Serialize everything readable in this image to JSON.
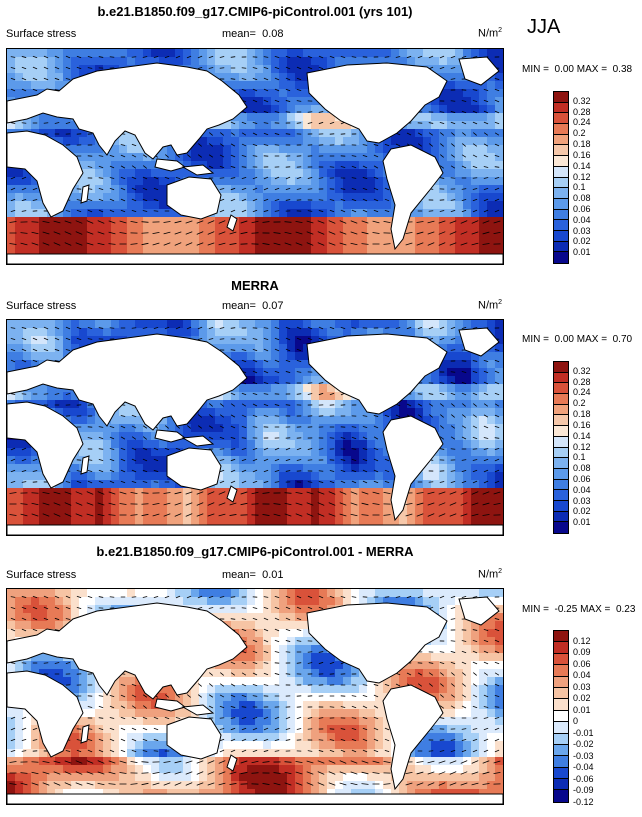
{
  "season": "JJA",
  "colors": {
    "full": [
      "#08088c",
      "#0c2cb4",
      "#1848cf",
      "#2a62dc",
      "#3f7ee2",
      "#5c9aea",
      "#7cb2f0",
      "#a6cff6",
      "#d4e6fb",
      "#fbe8d6",
      "#f6c8aa",
      "#f0a27c",
      "#e77a56",
      "#d9523a",
      "#c12e24",
      "#8e1410"
    ],
    "diff": [
      "#08088c",
      "#0c2cb4",
      "#1848cf",
      "#3f7ee2",
      "#6aa6ec",
      "#a6cff6",
      "#dbeafc",
      "#ffffff",
      "#fbe0cc",
      "#f6c4a4",
      "#efa17e",
      "#e77a56",
      "#d9523a",
      "#c12e24",
      "#8e1410"
    ]
  },
  "panels": [
    {
      "id": "model",
      "title": "b.e21.B1850.f09_g17.CMIP6-piControl.001 (yrs 101)",
      "left_label": "Surface stress",
      "mean_label": "mean=",
      "mean_value": "0.08",
      "units_base": "N/m",
      "units_exp": "2",
      "min_label": "MIN =",
      "min_value": "0.00",
      "max_label": "MAX =",
      "max_value": "0.38",
      "colorbar_labels": [
        "0.32",
        "0.28",
        "0.24",
        "0.2",
        "0.18",
        "0.16",
        "0.14",
        "0.12",
        "0.1",
        "0.08",
        "0.06",
        "0.04",
        "0.03",
        "0.02",
        "0.01"
      ]
    },
    {
      "id": "obs",
      "title": "MERRA",
      "left_label": "Surface stress",
      "mean_label": "mean=",
      "mean_value": "0.07",
      "units_base": "N/m",
      "units_exp": "2",
      "min_label": "MIN =",
      "min_value": "0.00",
      "max_label": "MAX =",
      "max_value": "0.70",
      "colorbar_labels": [
        "0.32",
        "0.28",
        "0.24",
        "0.2",
        "0.18",
        "0.16",
        "0.14",
        "0.12",
        "0.1",
        "0.08",
        "0.06",
        "0.04",
        "0.03",
        "0.02",
        "0.01"
      ]
    },
    {
      "id": "diff",
      "title": "b.e21.B1850.f09_g17.CMIP6-piControl.001 - MERRA",
      "left_label": "Surface stress",
      "mean_label": "mean=",
      "mean_value": "0.01",
      "units_base": "N/m",
      "units_exp": "2",
      "min_label": "MIN =",
      "min_value": "-0.25",
      "max_label": "MAX =",
      "max_value": "0.23",
      "colorbar_labels": [
        "0.12",
        "0.09",
        "0.06",
        "0.04",
        "0.03",
        "0.02",
        "0.01",
        "0",
        "-0.01",
        "-0.02",
        "-0.03",
        "-0.04",
        "-0.06",
        "-0.09",
        "-0.12"
      ]
    }
  ]
}
